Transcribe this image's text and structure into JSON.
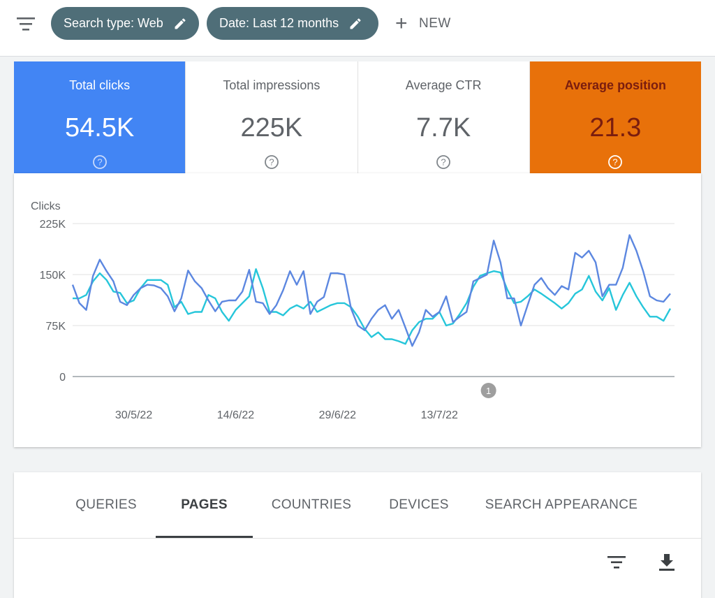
{
  "filter_bar": {
    "filter_icon": "filter-list-icon",
    "chips": [
      {
        "label": "Search type: Web",
        "icon": "edit-icon"
      },
      {
        "label": "Date: Last 12 months",
        "icon": "edit-icon"
      }
    ],
    "new_label": "NEW",
    "new_icon": "plus-icon"
  },
  "metrics": [
    {
      "label": "Total clicks",
      "value": "54.5K",
      "selected": true,
      "color": "#4285f4"
    },
    {
      "label": "Total impressions",
      "value": "225K",
      "selected": false
    },
    {
      "label": "Average CTR",
      "value": "7.7K",
      "selected": false
    },
    {
      "label": "Average position",
      "value": "21.3",
      "selected": true,
      "color": "#e8710a"
    }
  ],
  "chart_data": {
    "type": "line",
    "ylabel": "Clicks",
    "ytick_labels": [
      "225K",
      "150K",
      "75K",
      "0"
    ],
    "yticks": [
      225000,
      150000,
      75000,
      0
    ],
    "ylim": [
      0,
      225000
    ],
    "xtick_labels": [
      "30/5/22",
      "14/6/22",
      "29/6/22",
      "13/7/22"
    ],
    "xtick_index": [
      9,
      24,
      39,
      54
    ],
    "annotation": "1",
    "annotation_index": 60,
    "series": [
      {
        "name": "Total clicks",
        "color": "#5c87e0",
        "values": [
          135000,
          108000,
          98000,
          148000,
          172000,
          155000,
          140000,
          110000,
          105000,
          120000,
          130000,
          135000,
          134000,
          130000,
          118000,
          96000,
          115000,
          156000,
          140000,
          130000,
          112000,
          96000,
          110000,
          112000,
          112000,
          125000,
          157000,
          110000,
          108000,
          92000,
          105000,
          127000,
          155000,
          135000,
          155000,
          92000,
          110000,
          117000,
          152000,
          152000,
          150000,
          100000,
          75000,
          68000,
          85000,
          98000,
          105000,
          85000,
          98000,
          72000,
          45000,
          65000,
          98000,
          88000,
          95000,
          118000,
          80000,
          88000,
          95000,
          140000,
          145000,
          150000,
          200000,
          168000,
          115000,
          115000,
          75000,
          105000,
          135000,
          145000,
          130000,
          120000,
          133000,
          128000,
          182000,
          175000,
          185000,
          168000,
          118000,
          135000,
          135000,
          160000,
          208000,
          185000,
          155000,
          118000,
          112000,
          110000,
          122000
        ]
      },
      {
        "name": "Average position",
        "color": "#26c6da",
        "values": [
          115000,
          115000,
          120000,
          140000,
          152000,
          142000,
          125000,
          123000,
          108000,
          112000,
          130000,
          142000,
          142000,
          142000,
          135000,
          102000,
          110000,
          92000,
          95000,
          95000,
          120000,
          115000,
          95000,
          82000,
          98000,
          108000,
          118000,
          158000,
          130000,
          95000,
          95000,
          90000,
          100000,
          105000,
          100000,
          110000,
          95000,
          100000,
          105000,
          108000,
          108000,
          102000,
          88000,
          70000,
          58000,
          65000,
          55000,
          55000,
          52000,
          48000,
          68000,
          80000,
          85000,
          85000,
          95000,
          75000,
          78000,
          92000,
          108000,
          132000,
          148000,
          152000,
          155000,
          153000,
          128000,
          108000,
          110000,
          118000,
          128000,
          122000,
          115000,
          108000,
          100000,
          108000,
          122000,
          128000,
          148000,
          125000,
          112000,
          130000,
          98000,
          120000,
          138000,
          118000,
          102000,
          88000,
          88000,
          82000,
          100000
        ]
      }
    ]
  },
  "tabs": [
    {
      "label": "QUERIES",
      "active": false
    },
    {
      "label": "PAGES",
      "active": true
    },
    {
      "label": "COUNTRIES",
      "active": false
    },
    {
      "label": "DEVICES",
      "active": false
    },
    {
      "label": "SEARCH APPEARANCE",
      "active": false
    }
  ],
  "table_tools": {
    "filter_icon": "filter-icon",
    "download_icon": "download-icon"
  }
}
